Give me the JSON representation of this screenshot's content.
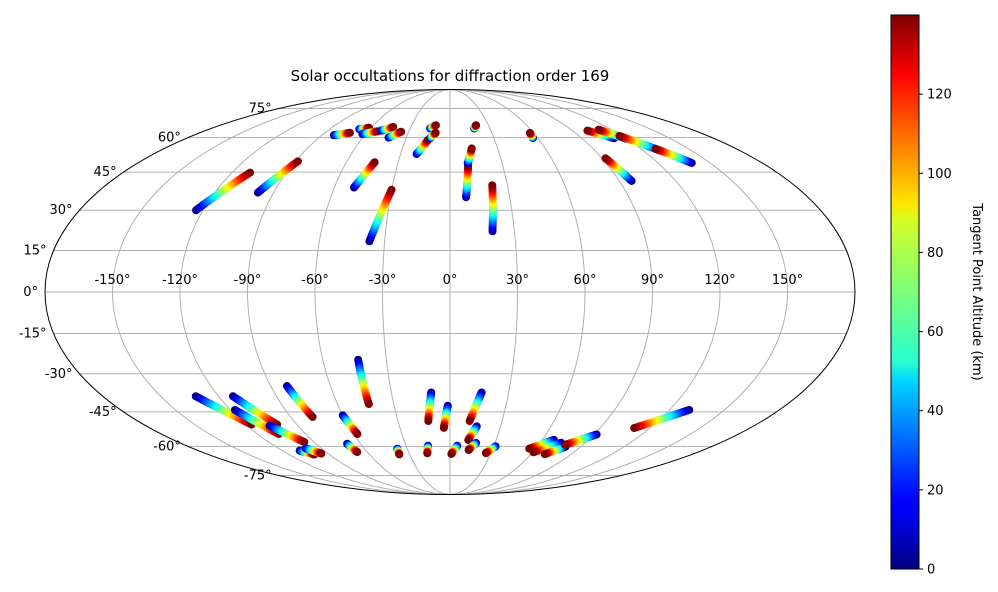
{
  "chart_data": {
    "type": "scatter",
    "projection": "mollweide",
    "title": "Solar occultations for diffraction order 169",
    "lon_ticks": [
      "-150°",
      "-120°",
      "-90°",
      "-60°",
      "-30°",
      "0°",
      "30°",
      "60°",
      "90°",
      "120°",
      "150°"
    ],
    "lon_tick_values": [
      -150,
      -120,
      -90,
      -60,
      -30,
      0,
      30,
      60,
      90,
      120,
      150
    ],
    "lat_ticks": [
      "-75°",
      "-60°",
      "-45°",
      "-30°",
      "-15°",
      "0°",
      "15°",
      "30°",
      "45°",
      "60°",
      "75°"
    ],
    "lat_tick_values": [
      -75,
      -60,
      -45,
      -30,
      -15,
      0,
      15,
      30,
      45,
      60,
      75
    ],
    "grid": true,
    "colorbar": {
      "label": "Tangent Point Altitude (km)",
      "ticks": [
        "0",
        "20",
        "40",
        "60",
        "80",
        "100",
        "120"
      ],
      "tick_values": [
        0,
        20,
        40,
        60,
        80,
        100,
        120
      ],
      "range": [
        0,
        140
      ],
      "colormap": "jet"
    },
    "tracks": [
      {
        "lon0": -123.4,
        "lat0": 30.0,
        "lon1": -110.0,
        "lat1": 44.8
      },
      {
        "lon0": -98.0,
        "lat0": 36.8,
        "lon1": -88.5,
        "lat1": 49.5
      },
      {
        "lon0": -81.5,
        "lat0": 61.1,
        "lon1": -72.0,
        "lat1": 62.3
      },
      {
        "lon0": -67.8,
        "lat0": 64.0,
        "lon1": -61.5,
        "lat1": 64.7
      },
      {
        "lon0": -62.3,
        "lat0": 61.7,
        "lon1": -52.8,
        "lat1": 63.0
      },
      {
        "lon0": -50.6,
        "lat0": 63.3,
        "lon1": -43.5,
        "lat1": 65.1
      },
      {
        "lon0": -42.2,
        "lat0": 60.0,
        "lon1": -35.5,
        "lat1": 62.8
      },
      {
        "lon0": -49.8,
        "lat0": 38.8,
        "lon1": -43.6,
        "lat1": 49.1
      },
      {
        "lon0": -37.0,
        "lat0": 18.4,
        "lon1": -30.1,
        "lat1": 37.9
      },
      {
        "lon0": -20.3,
        "lat0": 52.6,
        "lon1": -14.8,
        "lat1": 58.9
      },
      {
        "lon0": -15.0,
        "lat0": 64.4,
        "lon1": -11.0,
        "lat1": 66.0
      },
      {
        "lon0": -13.5,
        "lat0": 59.7,
        "lon1": -10.3,
        "lat1": 62.3
      },
      {
        "lon0": 8.1,
        "lat0": 35.0,
        "lon1": 10.3,
        "lat1": 47.6
      },
      {
        "lon0": 10.2,
        "lat0": 48.6,
        "lon1": 13.7,
        "lat1": 55.1
      },
      {
        "lon0": 19.8,
        "lat0": 22.1,
        "lon1": 22.1,
        "lat1": 39.7
      },
      {
        "lon0": 18.2,
        "lat0": 64.4,
        "lon1": 20.4,
        "lat1": 66.0
      },
      {
        "lon0": 56.8,
        "lat0": 59.8,
        "lon1": 57.4,
        "lat1": 62.2
      },
      {
        "lon0": 96.5,
        "lat0": 41.4,
        "lon1": 92.0,
        "lat1": 50.8
      },
      {
        "lon0": 112.0,
        "lat0": 59.7,
        "lon1": 101.0,
        "lat1": 63.3
      },
      {
        "lon0": 119.7,
        "lat0": 59.5,
        "lon1": 110.5,
        "lat1": 63.8
      },
      {
        "lon0": 130.3,
        "lat0": 54.2,
        "lon1": 118.2,
        "lat1": 60.8
      },
      {
        "lon0": 139.4,
        "lat0": 48.8,
        "lon1": 129.3,
        "lat1": 54.9
      },
      {
        "lon0": -43.3,
        "lat0": -24.7,
        "lon1": -43.3,
        "lat1": -41.8
      },
      {
        "lon0": -81.8,
        "lat0": -34.7,
        "lon1": -77.6,
        "lat1": -47.1
      },
      {
        "lon0": -60.1,
        "lat0": -46.4,
        "lon1": -57.7,
        "lat1": -54.4
      },
      {
        "lon0": -69.1,
        "lat0": -58.8,
        "lon1": -67.3,
        "lat1": -62.7
      },
      {
        "lon0": -37.0,
        "lat0": -61.1,
        "lon1": -37.7,
        "lat1": -63.8
      },
      {
        "lon0": -15.0,
        "lat0": -59.7,
        "lon1": -16.7,
        "lat1": -63.3
      },
      {
        "lon0": -1.2,
        "lat0": -42.5,
        "lon1": -3.7,
        "lat1": -51.7
      },
      {
        "lon0": -9.6,
        "lat0": -37.2,
        "lon1": -12.5,
        "lat1": -48.8
      },
      {
        "lon0": 4.9,
        "lat0": -59.7,
        "lon1": 1.0,
        "lat1": -63.6
      },
      {
        "lon0": 16.2,
        "lat0": -37.2,
        "lon1": 11.3,
        "lat1": -48.8
      },
      {
        "lon0": 15.9,
        "lat0": -51.1,
        "lon1": 11.9,
        "lat1": -57.1
      },
      {
        "lon0": 17.4,
        "lat0": -58.4,
        "lon1": 13.2,
        "lat1": -61.7
      },
      {
        "lon0": 31.3,
        "lat0": -60.0,
        "lon1": 26.3,
        "lat1": -63.2
      },
      {
        "lon0": -131.8,
        "lat0": -38.7,
        "lon1": -116.6,
        "lat1": -50.3
      },
      {
        "lon0": -117.6,
        "lat0": -44.2,
        "lon1": -106.8,
        "lat1": -54.4
      },
      {
        "lon0": -112.5,
        "lat0": -38.7,
        "lon1": -101.6,
        "lat1": -50.3
      },
      {
        "lon0": -106.8,
        "lat0": -50.8,
        "lon1": -96.4,
        "lat1": -58.0
      },
      {
        "lon0": -107.5,
        "lat0": -62.0,
        "lon1": -101.1,
        "lat1": -63.9
      },
      {
        "lon0": -101.0,
        "lat0": -60.9,
        "lon1": -94.8,
        "lat1": -63.4
      },
      {
        "lon0": 67.6,
        "lat0": -57.0,
        "lon1": 55.6,
        "lat1": -61.1
      },
      {
        "lon0": 74.0,
        "lat0": -58.3,
        "lon1": 60.7,
        "lat1": -62.8
      },
      {
        "lon0": 79.6,
        "lat0": -60.2,
        "lon1": 70.3,
        "lat1": -63.7
      },
      {
        "lon0": 91.7,
        "lat0": -54.6,
        "lon1": 78.1,
        "lat1": -59.3
      },
      {
        "lon0": 130.8,
        "lat0": -44.2,
        "lon1": 110.5,
        "lat1": -51.8
      }
    ]
  }
}
